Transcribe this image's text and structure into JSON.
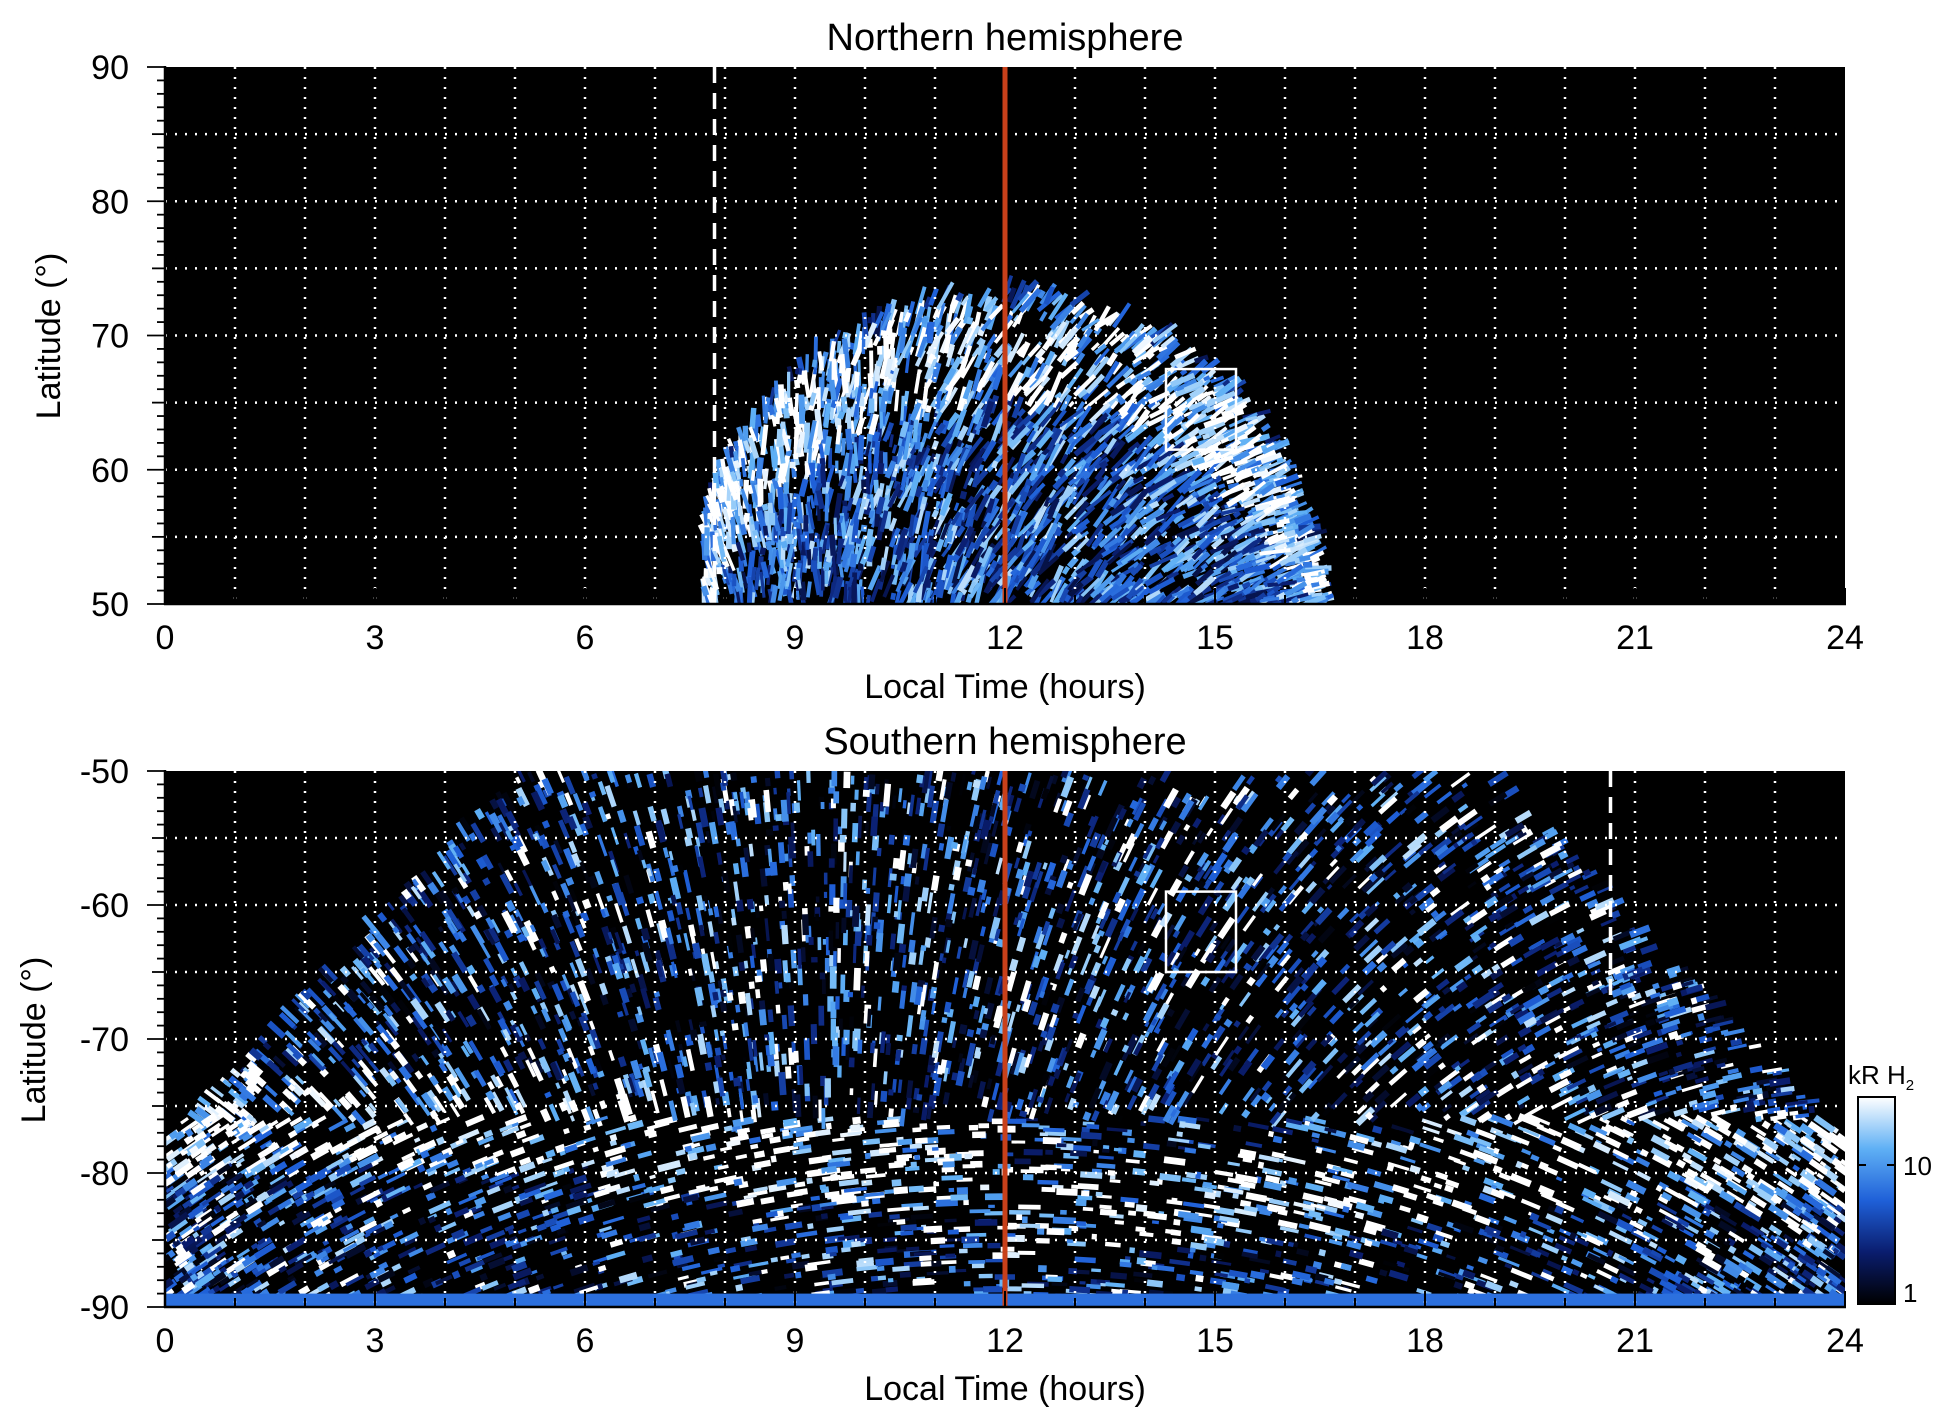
{
  "chart_data": [
    {
      "type": "heatmap",
      "title": "Northern hemisphere",
      "xlabel": "Local Time (hours)",
      "ylabel": "Latitude (°)",
      "xlim": [
        0,
        24
      ],
      "ylim": [
        50,
        90
      ],
      "x_ticks": [
        "0",
        "3",
        "6",
        "9",
        "12",
        "15",
        "18",
        "21",
        "24"
      ],
      "y_ticks": [
        "50",
        "60",
        "70",
        "80",
        "90"
      ],
      "grid": true,
      "reference_line_lt": 12,
      "dashed_line_lt": 7.85,
      "dashed_line_top": 90,
      "dashed_line_bottom": 50,
      "box": {
        "lt": [
          14.3,
          15.3
        ],
        "lat": [
          61.5,
          67.5
        ]
      },
      "emission_region": {
        "lt_min": 7.7,
        "lt_max": 16.7,
        "lat_peak": 73.5,
        "oval_lat": 68
      }
    },
    {
      "type": "heatmap",
      "title": "Southern hemisphere",
      "xlabel": "Local Time (hours)",
      "ylabel": "Latitude (°)",
      "xlim": [
        0,
        24
      ],
      "ylim": [
        -90,
        -50
      ],
      "x_ticks": [
        "0",
        "3",
        "6",
        "9",
        "12",
        "15",
        "18",
        "21",
        "24"
      ],
      "y_ticks": [
        "-90",
        "-80",
        "-70",
        "-60",
        "-50"
      ],
      "grid": true,
      "reference_line_lt": 12,
      "dashed_line_lt": 20.65,
      "dashed_line_top": -50,
      "dashed_line_bottom": -67,
      "box": {
        "lt": [
          14.3,
          15.3
        ],
        "lat": [
          -65,
          -59
        ]
      },
      "emission_region": {
        "lt_min": 0,
        "lt_max": 24,
        "lat_peak": -50,
        "oval_lat": -76
      }
    }
  ],
  "colorbar": {
    "label": "kR H",
    "label_subscript": "2",
    "ticks": [
      "1",
      "10"
    ],
    "scale": "log",
    "colors": [
      "#000000",
      "#0a1d6e",
      "#1f60d8",
      "#5fb0f5",
      "#ffffff"
    ]
  },
  "colors": {
    "reference_line": "#c8401a",
    "grid": "#ffffff",
    "background": "#000000"
  }
}
